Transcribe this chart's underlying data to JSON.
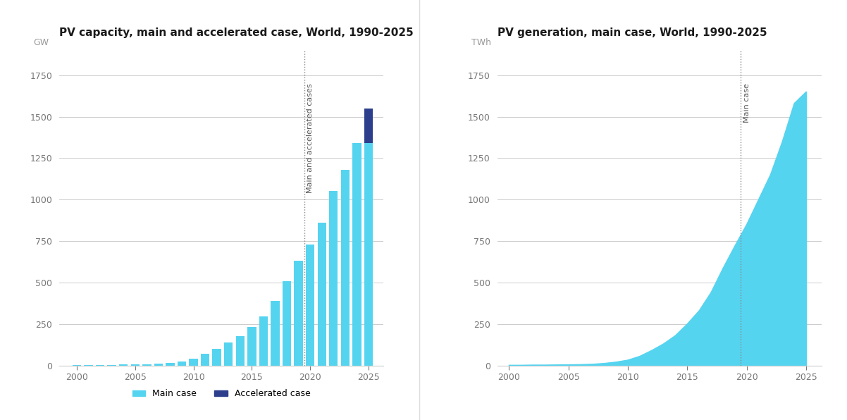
{
  "chart1_title": "PV capacity, main and accelerated case, World, 1990-2025",
  "chart1_ylabel": "GW",
  "chart2_title": "PV generation, main case, World, 1990-2025",
  "chart2_ylabel": "TWh",
  "bar_years": [
    2000,
    2001,
    2002,
    2003,
    2004,
    2005,
    2006,
    2007,
    2008,
    2009,
    2010,
    2011,
    2012,
    2013,
    2014,
    2015,
    2016,
    2017,
    2018,
    2019,
    2020,
    2021,
    2022,
    2023,
    2024,
    2025
  ],
  "main_case": [
    1,
    2,
    3,
    4,
    5,
    6,
    8,
    10,
    15,
    23,
    40,
    70,
    100,
    138,
    177,
    230,
    295,
    390,
    510,
    630,
    730,
    860,
    1050,
    1180,
    1340,
    1340
  ],
  "accel_extra": [
    0,
    0,
    0,
    0,
    0,
    0,
    0,
    0,
    0,
    0,
    0,
    0,
    0,
    0,
    0,
    0,
    0,
    0,
    0,
    0,
    0,
    0,
    0,
    0,
    0,
    210
  ],
  "dotted_line_x_bar": 2019.5,
  "dotted_line_label_bar": "Main and accelerated cases",
  "area_years": [
    2000,
    2001,
    2002,
    2003,
    2004,
    2005,
    2006,
    2007,
    2008,
    2009,
    2010,
    2011,
    2012,
    2013,
    2014,
    2015,
    2016,
    2017,
    2018,
    2019,
    2020,
    2021,
    2022,
    2023,
    2024,
    2025
  ],
  "area_values": [
    1,
    1,
    2,
    2,
    3,
    4,
    5,
    7,
    12,
    20,
    32,
    55,
    90,
    130,
    180,
    250,
    330,
    440,
    585,
    720,
    850,
    1000,
    1150,
    1350,
    1580,
    1650
  ],
  "dotted_line_x_area": 2019.5,
  "dotted_line_label_area": "Main case",
  "bar_color_main": "#55d4f0",
  "bar_color_accel": "#2c3e8c",
  "area_color": "#55d4f0",
  "area_line_color": "#55d4f0",
  "title_fontsize": 11,
  "label_fontsize": 9,
  "tick_fontsize": 9,
  "annotation_fontsize": 8,
  "ylim_bar": [
    0,
    1900
  ],
  "ylim_area": [
    0,
    1900
  ],
  "yticks": [
    0,
    250,
    500,
    750,
    1000,
    1250,
    1500,
    1750
  ],
  "xticks": [
    2000,
    2005,
    2010,
    2015,
    2020,
    2025
  ],
  "bg_color": "#ffffff",
  "grid_color": "#cccccc",
  "title_color": "#1a1a1a",
  "ylabel_color": "#999999",
  "tick_color": "#777777"
}
